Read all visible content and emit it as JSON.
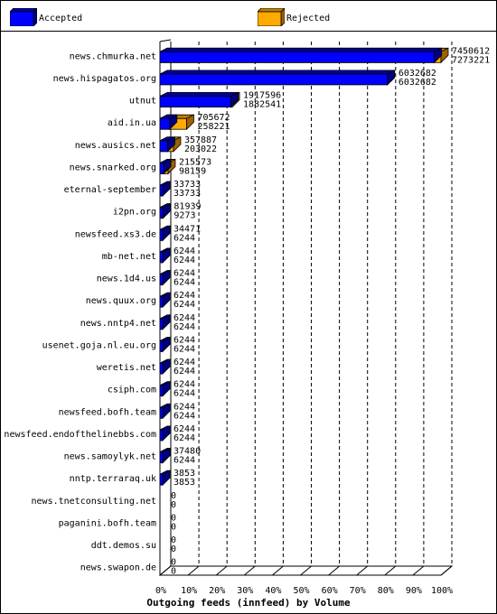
{
  "chart_data": {
    "type": "bar",
    "orientation": "horizontal",
    "title": "Outgoing feeds (innfeed) by Volume",
    "xlim": [
      0,
      100
    ],
    "x_ticks": [
      "0%",
      "10%",
      "20%",
      "30%",
      "40%",
      "50%",
      "60%",
      "70%",
      "80%",
      "90%",
      "100%"
    ],
    "grid": "vertical dashed",
    "legend_position": "top",
    "series": [
      {
        "name": "Accepted",
        "color": "#0000ff"
      },
      {
        "name": "Rejected",
        "color": "#ffaa00"
      }
    ],
    "categories": [
      "news.chmurka.net",
      "news.hispagatos.org",
      "utnut",
      "aid.in.ua",
      "news.ausics.net",
      "news.snarked.org",
      "eternal-september",
      "i2pn.org",
      "newsfeed.xs3.de",
      "mb-net.net",
      "news.1d4.us",
      "news.quux.org",
      "news.nntp4.net",
      "usenet.goja.nl.eu.org",
      "weretis.net",
      "csiph.com",
      "newsfeed.bofh.team",
      "newsfeed.endofthelinebbs.com",
      "news.samoylyk.net",
      "nntp.terraraq.uk",
      "news.tnetconsulting.net",
      "paganini.bofh.team",
      "ddt.demos.su",
      "news.swapon.de"
    ],
    "totals": [
      7450612,
      6032682,
      1917596,
      705672,
      357887,
      215573,
      33733,
      81939,
      34471,
      6244,
      6244,
      6244,
      6244,
      6244,
      6244,
      6244,
      6244,
      6244,
      37480,
      3853,
      0,
      0,
      0,
      0
    ],
    "accepted": [
      7273221,
      6032682,
      1882541,
      258221,
      203022,
      98159,
      33733,
      9273,
      6244,
      6244,
      6244,
      6244,
      6244,
      6244,
      6244,
      6244,
      6244,
      6244,
      6244,
      3853,
      0,
      0,
      0,
      0
    ]
  }
}
